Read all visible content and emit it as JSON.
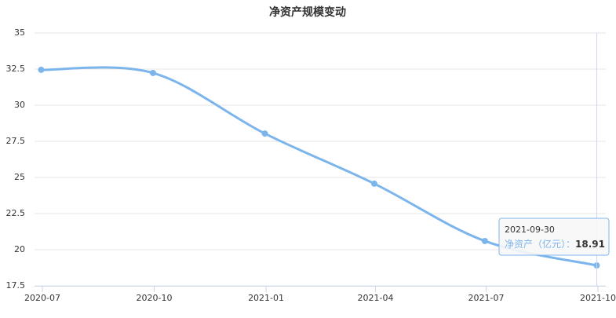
{
  "chart_data": {
    "type": "line",
    "title": "净资产规模变动",
    "x": [
      "2020-06-30",
      "2020-09-30",
      "2020-12-31",
      "2021-03-31",
      "2021-06-30",
      "2021-09-30"
    ],
    "xlim": [
      "2020-07",
      "2021-10"
    ],
    "xticks": [
      "2020-07",
      "2020-10",
      "2021-01",
      "2021-04",
      "2021-07",
      "2021-10"
    ],
    "series": [
      {
        "name": "净资产（亿元）",
        "color": "#7cb5ec",
        "values": [
          32.45,
          32.23,
          28.04,
          24.57,
          20.6,
          18.91
        ]
      }
    ],
    "ylim": [
      17.5,
      35
    ],
    "yticks": [
      17.5,
      20,
      22.5,
      25,
      27.5,
      30,
      32.5,
      35
    ],
    "grid": true,
    "tooltip_label": "净资产（亿元）："
  }
}
